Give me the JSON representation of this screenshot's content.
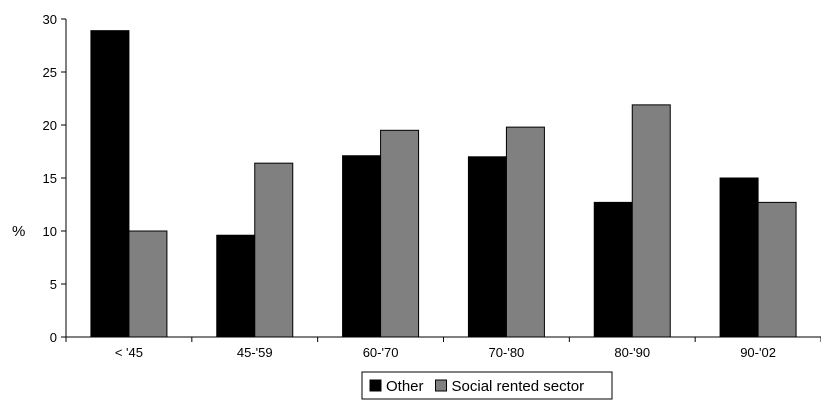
{
  "chart_data": {
    "type": "bar",
    "title": "",
    "xlabel": "",
    "ylabel": "%",
    "ylim": [
      0,
      30
    ],
    "yticks": [
      0,
      5,
      10,
      15,
      20,
      25,
      30
    ],
    "grid": false,
    "legend_position": "bottom",
    "categories": [
      "< '45",
      "45-'59",
      "60-'70",
      "70-'80",
      "80-'90",
      "90-'02"
    ],
    "series": [
      {
        "name": "Other",
        "color": "#000000",
        "values": [
          28.9,
          9.6,
          17.1,
          17.0,
          12.7,
          15.0
        ]
      },
      {
        "name": "Social rented sector",
        "color": "#808080",
        "values": [
          10.0,
          16.4,
          19.5,
          19.8,
          21.9,
          12.7
        ]
      }
    ]
  }
}
